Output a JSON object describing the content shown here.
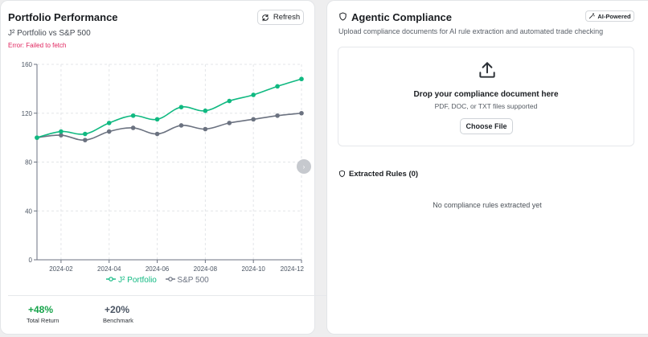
{
  "portfolio": {
    "title": "Portfolio Performance",
    "subtitle": "J² Portfolio vs S&P 500",
    "error": "Error: Failed to fetch",
    "refresh_label": "Refresh",
    "legend": [
      "J² Portfolio",
      "S&P 500"
    ],
    "stats": [
      {
        "value": "+48%",
        "label": "Total Return",
        "color": "#16a34a"
      },
      {
        "value": "+20%",
        "label": "Benchmark",
        "color": "#4b5563"
      }
    ],
    "scroll_handle_label": "›"
  },
  "chart_data": {
    "type": "line",
    "x": [
      "2024-01",
      "2024-02",
      "2024-03",
      "2024-04",
      "2024-05",
      "2024-06",
      "2024-07",
      "2024-08",
      "2024-09",
      "2024-10",
      "2024-11",
      "2024-12"
    ],
    "x_ticks": [
      "2024-02",
      "2024-04",
      "2024-06",
      "2024-08",
      "2024-10",
      "2024-12"
    ],
    "y_ticks": [
      "0",
      "40",
      "80",
      "120",
      "160"
    ],
    "ylim": [
      0,
      160
    ],
    "grid": true,
    "legend_position": "bottom",
    "series": [
      {
        "name": "J² Portfolio",
        "color": "#10b981",
        "values": [
          100,
          105,
          103,
          112,
          118,
          115,
          125,
          122,
          130,
          135,
          142,
          148
        ]
      },
      {
        "name": "S&P 500",
        "color": "#6b7280",
        "values": [
          100,
          102,
          98,
          105,
          108,
          103,
          110,
          107,
          112,
          115,
          118,
          120
        ]
      }
    ]
  },
  "compliance": {
    "title": "Agentic Compliance",
    "badge": "AI-Powered",
    "description": "Upload compliance documents for AI rule extraction and automated trade checking",
    "drop_title": "Drop your compliance document here",
    "drop_sub": "PDF, DOC, or TXT files supported",
    "choose_file_label": "Choose File",
    "rules_title": "Extracted Rules (0)",
    "empty_text": "No compliance rules extracted yet"
  }
}
